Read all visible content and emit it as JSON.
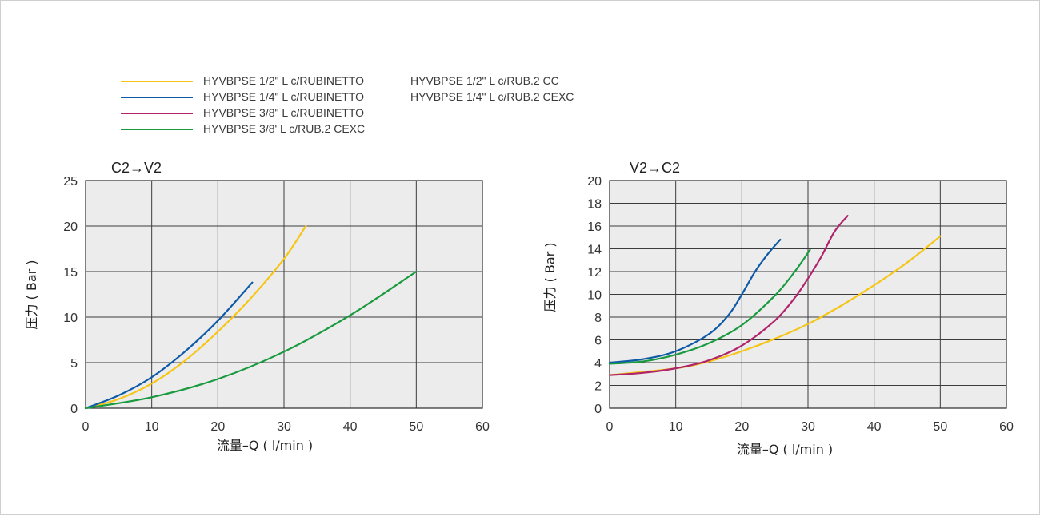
{
  "legend": {
    "entries": [
      {
        "label": "HYVBPSE 1/2\" L c/RUBINETTO",
        "color": "#f5c518"
      },
      {
        "label": "HYVBPSE 1/4\" L c/RUBINETTO",
        "color": "#0e5aa7"
      },
      {
        "label": "HYVBPSE 3/8\" L c/RUBINETTO",
        "color": "#b0246b"
      },
      {
        "label": "HYVBPSE 3/8' L c/RUB.2 CEXC",
        "color": "#1a9a3f"
      }
    ],
    "extra": [
      "HYVBPSE 1/2\" L c/RUB.2 CC",
      "HYVBPSE 1/4\" L c/RUB.2 CEXC"
    ]
  },
  "chart_data": [
    {
      "type": "line",
      "title": "C2→V2",
      "xlabel": "流量–Q ( l/min )",
      "ylabel": "压力 ( Bar )",
      "xlim": [
        0,
        60
      ],
      "ylim": [
        0,
        25
      ],
      "xticks": [
        0,
        10,
        20,
        30,
        40,
        50,
        60
      ],
      "yticks": [
        0,
        5,
        10,
        15,
        20,
        25
      ],
      "grid": true,
      "background": "#ececec",
      "series": [
        {
          "color": "#f5c518",
          "x": [
            0,
            5,
            10,
            15,
            20,
            25,
            30,
            33.3
          ],
          "y": [
            0,
            1.0,
            2.7,
            5.2,
            8.4,
            12.1,
            16.4,
            20
          ]
        },
        {
          "color": "#0e5aa7",
          "x": [
            0,
            5,
            10,
            15,
            20,
            25.2
          ],
          "y": [
            0,
            1.4,
            3.4,
            6.2,
            9.6,
            13.8
          ]
        },
        {
          "color": "#1a9a3f",
          "x": [
            0,
            10,
            20,
            30,
            40,
            50
          ],
          "y": [
            0,
            1.2,
            3.2,
            6.2,
            10.2,
            15.0
          ]
        }
      ]
    },
    {
      "type": "line",
      "title": "V2→C2",
      "xlabel": "流量–Q ( l/min )",
      "ylabel": "压力 ( Bar )",
      "xlim": [
        0,
        60
      ],
      "ylim": [
        0,
        20
      ],
      "xticks": [
        0,
        10,
        20,
        30,
        40,
        50,
        60
      ],
      "yticks": [
        0,
        2,
        4,
        6,
        8,
        10,
        12,
        14,
        16,
        18,
        20
      ],
      "grid": true,
      "background": "#ececec",
      "series": [
        {
          "color": "#f5c518",
          "x": [
            0,
            10,
            15,
            20,
            25,
            30,
            35,
            40,
            45,
            50
          ],
          "y": [
            2.9,
            3.5,
            4.1,
            5.0,
            6.1,
            7.4,
            9.0,
            10.8,
            12.8,
            15.1
          ]
        },
        {
          "color": "#0e5aa7",
          "x": [
            0,
            5,
            10,
            15,
            18,
            20,
            22,
            24,
            25.8
          ],
          "y": [
            4.0,
            4.3,
            5.0,
            6.5,
            8.2,
            10.0,
            12.0,
            13.6,
            14.8
          ]
        },
        {
          "color": "#b0246b",
          "x": [
            0,
            5,
            10,
            15,
            20,
            25,
            28,
            30,
            32,
            34,
            36
          ],
          "y": [
            2.9,
            3.1,
            3.5,
            4.2,
            5.5,
            7.7,
            9.7,
            11.4,
            13.3,
            15.5,
            16.9
          ]
        },
        {
          "color": "#1a9a3f",
          "x": [
            0,
            5,
            10,
            15,
            20,
            25,
            28,
            30.3
          ],
          "y": [
            3.9,
            4.1,
            4.7,
            5.7,
            7.3,
            9.9,
            12.0,
            13.9
          ]
        }
      ]
    }
  ]
}
